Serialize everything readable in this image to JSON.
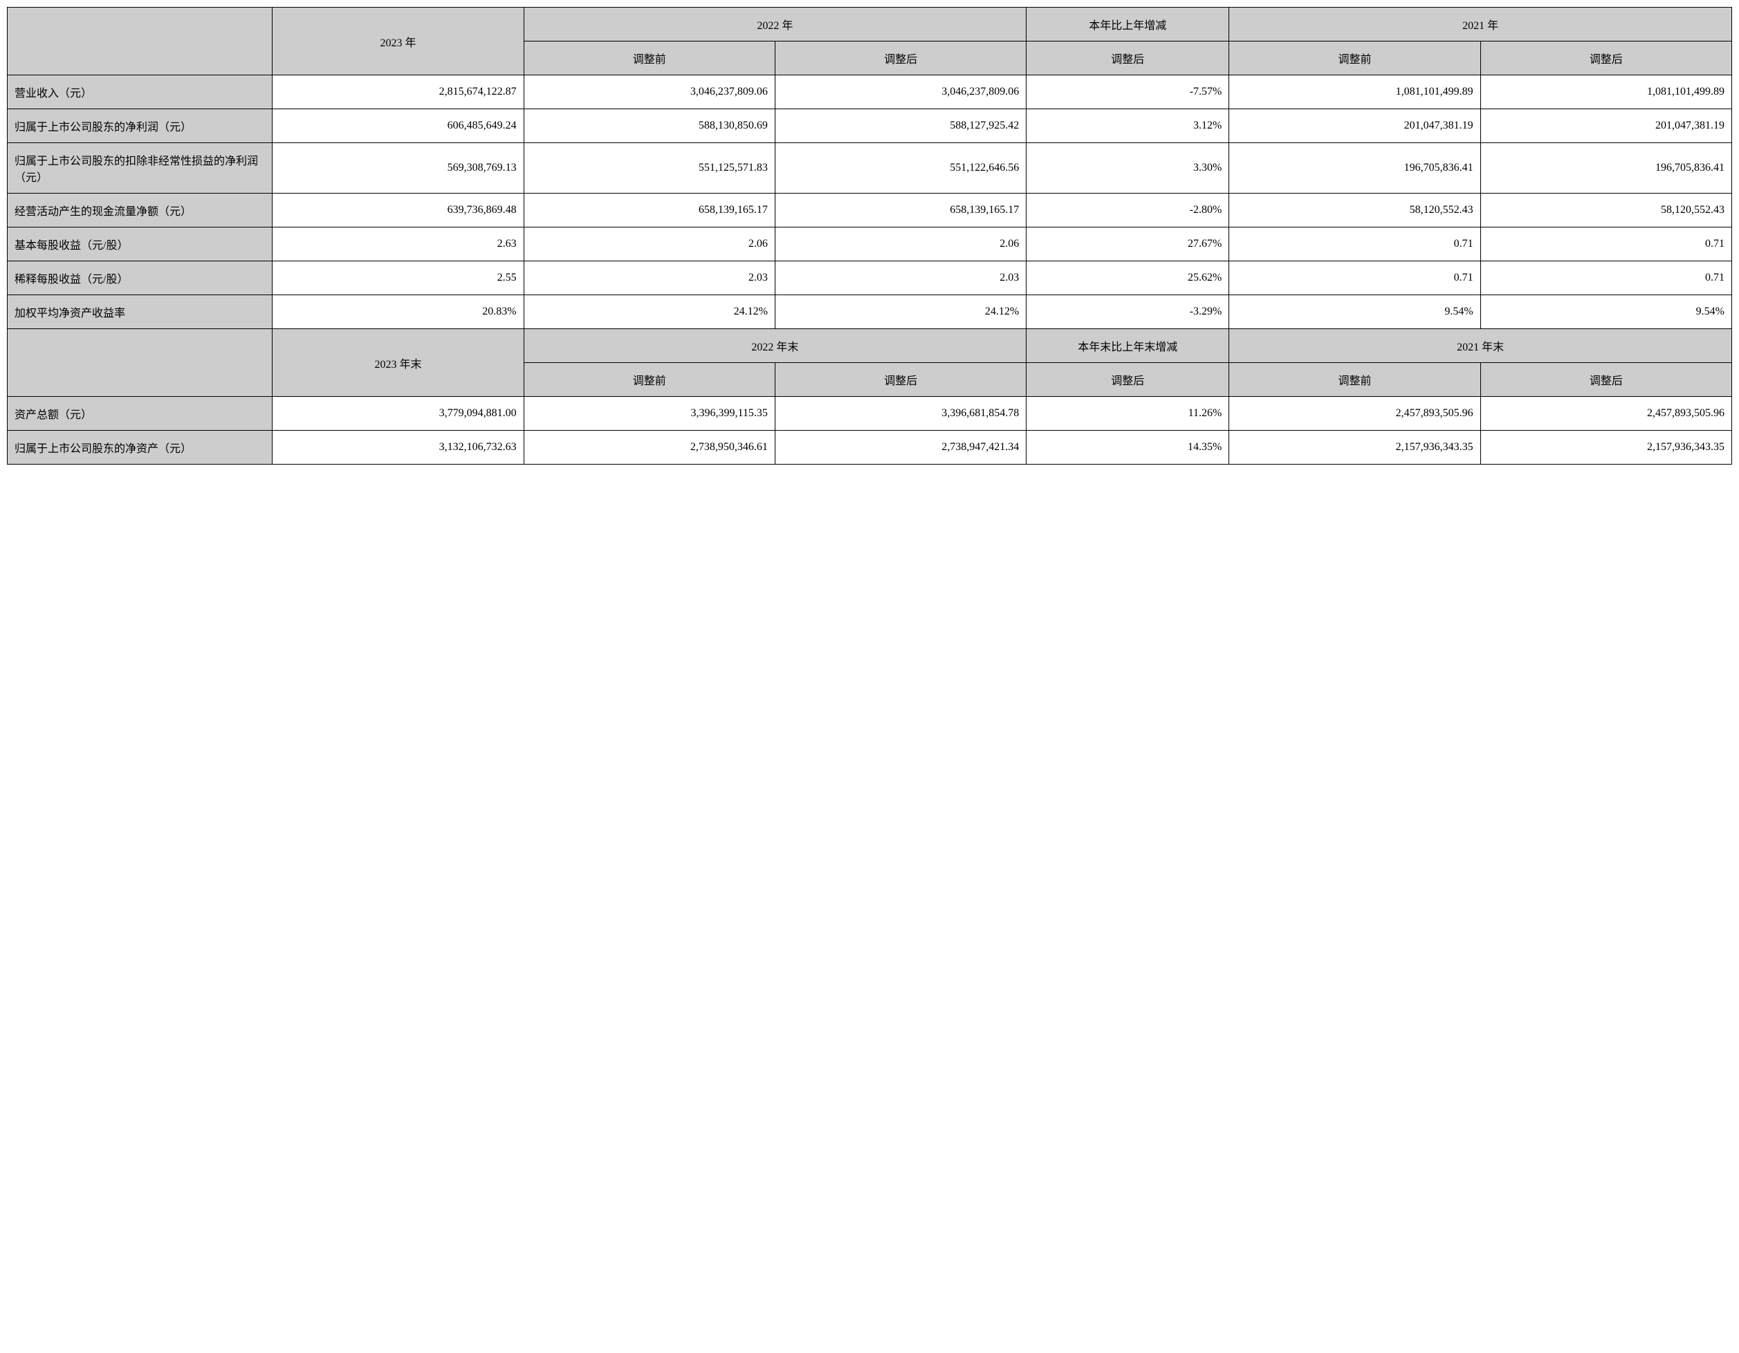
{
  "table": {
    "type": "table",
    "colors": {
      "header_bg": "#cdcdcd",
      "data_bg": "#ffffff",
      "border": "#000000",
      "text": "#000000"
    },
    "fontsize_pt": 20,
    "font_family": "SimSun",
    "section1": {
      "header_row1": {
        "col_2023": "2023 年",
        "col_2022": "2022 年",
        "col_change": "本年比上年增减",
        "col_2021": "2021 年"
      },
      "header_row2": {
        "adj_before": "调整前",
        "adj_after": "调整后"
      },
      "rows": [
        {
          "label": "营业收入（元）",
          "y2023": "2,815,674,122.87",
          "y2022_before": "3,046,237,809.06",
          "y2022_after": "3,046,237,809.06",
          "change": "-7.57%",
          "y2021_before": "1,081,101,499.89",
          "y2021_after": "1,081,101,499.89"
        },
        {
          "label": "归属于上市公司股东的净利润（元）",
          "y2023": "606,485,649.24",
          "y2022_before": "588,130,850.69",
          "y2022_after": "588,127,925.42",
          "change": "3.12%",
          "y2021_before": "201,047,381.19",
          "y2021_after": "201,047,381.19"
        },
        {
          "label": "归属于上市公司股东的扣除非经常性损益的净利润（元）",
          "y2023": "569,308,769.13",
          "y2022_before": "551,125,571.83",
          "y2022_after": "551,122,646.56",
          "change": "3.30%",
          "y2021_before": "196,705,836.41",
          "y2021_after": "196,705,836.41"
        },
        {
          "label": "经营活动产生的现金流量净额（元）",
          "y2023": "639,736,869.48",
          "y2022_before": "658,139,165.17",
          "y2022_after": "658,139,165.17",
          "change": "-2.80%",
          "y2021_before": "58,120,552.43",
          "y2021_after": "58,120,552.43"
        },
        {
          "label": "基本每股收益（元/股）",
          "y2023": "2.63",
          "y2022_before": "2.06",
          "y2022_after": "2.06",
          "change": "27.67%",
          "y2021_before": "0.71",
          "y2021_after": "0.71"
        },
        {
          "label": "稀释每股收益（元/股）",
          "y2023": "2.55",
          "y2022_before": "2.03",
          "y2022_after": "2.03",
          "change": "25.62%",
          "y2021_before": "0.71",
          "y2021_after": "0.71"
        },
        {
          "label": "加权平均净资产收益率",
          "y2023": "20.83%",
          "y2022_before": "24.12%",
          "y2022_after": "24.12%",
          "change": "-3.29%",
          "y2021_before": "9.54%",
          "y2021_after": "9.54%"
        }
      ]
    },
    "section2": {
      "header_row1": {
        "col_2023": "2023 年末",
        "col_2022": "2022 年末",
        "col_change": "本年末比上年末增减",
        "col_2021": "2021 年末"
      },
      "header_row2": {
        "adj_before": "调整前",
        "adj_after": "调整后"
      },
      "rows": [
        {
          "label": "资产总额（元）",
          "y2023": "3,779,094,881.00",
          "y2022_before": "3,396,399,115.35",
          "y2022_after": "3,396,681,854.78",
          "change": "11.26%",
          "y2021_before": "2,457,893,505.96",
          "y2021_after": "2,457,893,505.96"
        },
        {
          "label": "归属于上市公司股东的净资产（元）",
          "y2023": "3,132,106,732.63",
          "y2022_before": "2,738,950,346.61",
          "y2022_after": "2,738,947,421.34",
          "change": "14.35%",
          "y2021_before": "2,157,936,343.35",
          "y2021_after": "2,157,936,343.35"
        }
      ]
    }
  }
}
